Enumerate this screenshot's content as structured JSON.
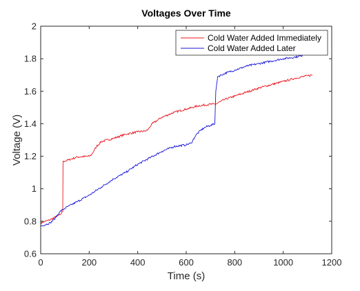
{
  "chart_data": {
    "type": "line",
    "title": "Voltages Over Time",
    "xlabel": "Time (s)",
    "ylabel": "Voltage (V)",
    "xlim": [
      0,
      1200
    ],
    "ylim": [
      0.6,
      2.0
    ],
    "xticks": [
      0,
      200,
      400,
      600,
      800,
      1000,
      1200
    ],
    "yticks": [
      0.6,
      0.8,
      1.0,
      1.2,
      1.4,
      1.6,
      1.8,
      2.0
    ],
    "ytick_labels": [
      "0.6",
      "0.8",
      "1",
      "1.2",
      "1.4",
      "1.6",
      "1.8",
      "2"
    ],
    "grid": false,
    "legend_position": "top-right",
    "series": [
      {
        "name": "Cold Water Added Immediately",
        "color": "#e8141c",
        "x": [
          0,
          40,
          80,
          91,
          92,
          100,
          150,
          200,
          210,
          230,
          250,
          300,
          350,
          400,
          430,
          440,
          450,
          460,
          480,
          500,
          550,
          600,
          650,
          700,
          720,
          740,
          760,
          800,
          850,
          900,
          950,
          1000,
          1050,
          1100,
          1120
        ],
        "y": [
          0.79,
          0.81,
          0.84,
          0.86,
          1.17,
          1.17,
          1.195,
          1.2,
          1.21,
          1.26,
          1.29,
          1.31,
          1.335,
          1.35,
          1.355,
          1.36,
          1.38,
          1.4,
          1.42,
          1.44,
          1.47,
          1.49,
          1.51,
          1.52,
          1.52,
          1.535,
          1.55,
          1.57,
          1.595,
          1.62,
          1.64,
          1.66,
          1.68,
          1.695,
          1.7
        ]
      },
      {
        "name": "Cold Water Added Later",
        "color": "#1414d8",
        "x": [
          0,
          40,
          60,
          80,
          100,
          150,
          200,
          250,
          300,
          350,
          400,
          450,
          500,
          550,
          600,
          620,
          640,
          660,
          680,
          700,
          718,
          722,
          730,
          760,
          800,
          850,
          900,
          950,
          1000,
          1050,
          1080
        ],
        "y": [
          0.77,
          0.79,
          0.82,
          0.86,
          0.88,
          0.92,
          0.96,
          1.01,
          1.06,
          1.1,
          1.15,
          1.19,
          1.23,
          1.26,
          1.27,
          1.28,
          1.33,
          1.36,
          1.38,
          1.39,
          1.4,
          1.6,
          1.69,
          1.71,
          1.73,
          1.755,
          1.77,
          1.785,
          1.8,
          1.81,
          1.82
        ]
      }
    ]
  }
}
